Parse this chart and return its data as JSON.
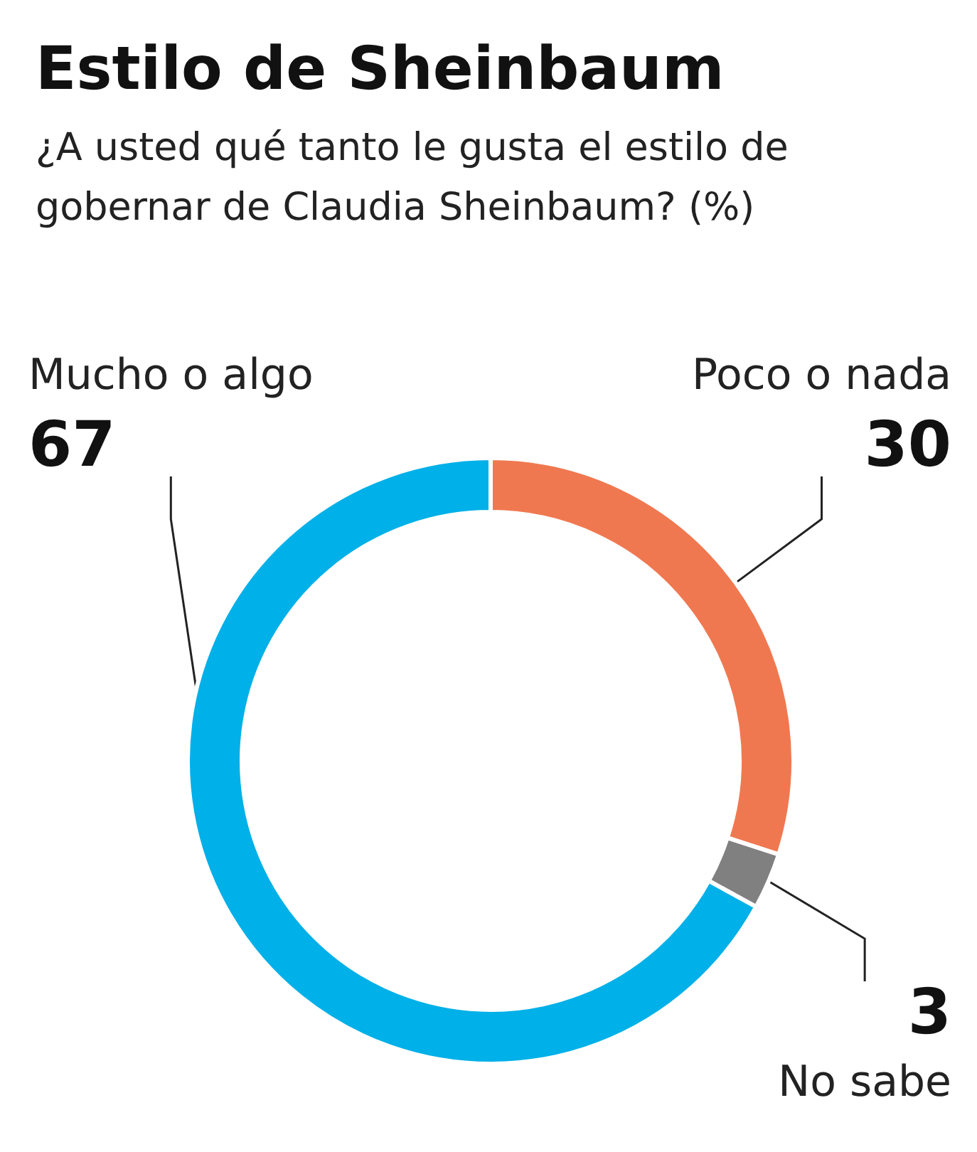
{
  "chart_data": {
    "type": "donut",
    "title": "Estilo de Sheinbaum",
    "subtitle": "¿A usted qué tanto le gusta el estilo de gobernar de Claudia Sheinbaum? (%)",
    "categories": [
      "Poco o nada",
      "No sabe",
      "Mucho o algo"
    ],
    "values": [
      30,
      3,
      67
    ],
    "colors": [
      "#f07850",
      "#808080",
      "#00b0e8"
    ],
    "data_labels": true,
    "legend": false
  }
}
